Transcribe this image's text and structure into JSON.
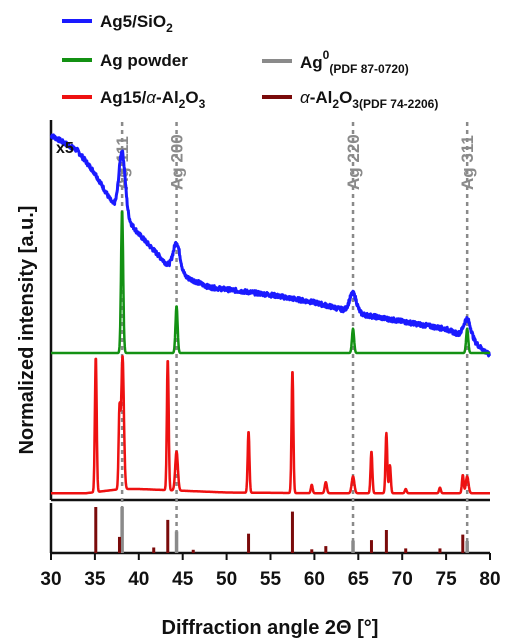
{
  "chart_data": {
    "type": "line",
    "xlabel": "Diffraction angle 2Θ [°]",
    "ylabel": "Normalized intensity [a.u.]",
    "xlim": [
      30,
      80
    ],
    "xticks": [
      "30",
      "35",
      "40",
      "45",
      "50",
      "55",
      "60",
      "65",
      "70",
      "75",
      "80"
    ],
    "scale_label": "x5",
    "legend": {
      "ag5": {
        "pre": "Ag5/SiO",
        "sub": "2",
        "post": "",
        "color": "#1a1aff"
      },
      "agpowder": {
        "pre": "Ag powder",
        "sub": "",
        "post": "",
        "color": "#139113"
      },
      "ag15": {
        "pre": "Ag15/",
        "alpha": "α",
        "mid": "-Al",
        "sub1": "2",
        "o": "O",
        "sub2": "3",
        "color": "#ee1111"
      },
      "ag0": {
        "pre": "Ag",
        "sup": "0",
        "sub": "(PDF 87-0720)",
        "color": "#8a8a8a"
      },
      "al2o3": {
        "alpha": "α",
        "mid": "-Al",
        "sub1": "2",
        "o": "O",
        "sub2": "3(PDF 74-2206)",
        "color": "#7a0a0a"
      }
    },
    "reflections": [
      {
        "label": "Ag 111",
        "x": 38.1
      },
      {
        "label": "Ag 200",
        "x": 44.3
      },
      {
        "label": "Ag 220",
        "x": 64.4
      },
      {
        "label": "Ag 311",
        "x": 77.4
      }
    ],
    "series": [
      {
        "name": "Ag5/SiO2",
        "baseline": [
          [
            30,
            0.96
          ],
          [
            33,
            0.92
          ],
          [
            35,
            0.86
          ],
          [
            37,
            0.78
          ],
          [
            38,
            0.76
          ],
          [
            40,
            0.7
          ],
          [
            44,
            0.6
          ],
          [
            48,
            0.56
          ],
          [
            55,
            0.54
          ],
          [
            60,
            0.52
          ],
          [
            65,
            0.49
          ],
          [
            70,
            0.47
          ],
          [
            75,
            0.45
          ],
          [
            78,
            0.42
          ],
          [
            80,
            0.38
          ]
        ],
        "peaks": [
          {
            "x": 38.1,
            "h": 0.16,
            "w": 0.35
          },
          {
            "x": 44.3,
            "h": 0.08,
            "w": 0.4
          },
          {
            "x": 64.4,
            "h": 0.05,
            "w": 0.4
          },
          {
            "x": 77.4,
            "h": 0.05,
            "w": 0.4
          }
        ]
      },
      {
        "name": "Ag powder",
        "baseline": [
          [
            30,
            0
          ],
          [
            80,
            0
          ]
        ],
        "peaks": [
          {
            "x": 38.1,
            "h": 1.0,
            "w": 0.12
          },
          {
            "x": 44.3,
            "h": 0.33,
            "w": 0.12
          },
          {
            "x": 64.4,
            "h": 0.17,
            "w": 0.12
          },
          {
            "x": 77.4,
            "h": 0.17,
            "w": 0.12
          }
        ]
      },
      {
        "name": "Ag15/α-Al2O3",
        "baseline": [
          [
            30,
            0.02
          ],
          [
            34,
            0.02
          ],
          [
            36,
            0.035
          ],
          [
            38,
            0.05
          ],
          [
            40,
            0.05
          ],
          [
            44,
            0.04
          ],
          [
            50,
            0.025
          ],
          [
            60,
            0.02
          ],
          [
            70,
            0.02
          ],
          [
            80,
            0.02
          ]
        ],
        "peaks": [
          {
            "x": 35.1,
            "h": 0.97,
            "w": 0.1
          },
          {
            "x": 37.8,
            "h": 0.55,
            "w": 0.1
          },
          {
            "x": 38.15,
            "h": 0.95,
            "w": 0.15
          },
          {
            "x": 43.3,
            "h": 0.94,
            "w": 0.1
          },
          {
            "x": 44.3,
            "h": 0.28,
            "w": 0.15
          },
          {
            "x": 52.5,
            "h": 0.44,
            "w": 0.1
          },
          {
            "x": 57.5,
            "h": 0.88,
            "w": 0.1
          },
          {
            "x": 59.7,
            "h": 0.06,
            "w": 0.1
          },
          {
            "x": 61.3,
            "h": 0.08,
            "w": 0.12
          },
          {
            "x": 64.4,
            "h": 0.12,
            "w": 0.15
          },
          {
            "x": 66.5,
            "h": 0.3,
            "w": 0.1
          },
          {
            "x": 68.2,
            "h": 0.43,
            "w": 0.1
          },
          {
            "x": 68.6,
            "h": 0.2,
            "w": 0.1
          },
          {
            "x": 70.4,
            "h": 0.03,
            "w": 0.1
          },
          {
            "x": 74.3,
            "h": 0.04,
            "w": 0.1
          },
          {
            "x": 76.9,
            "h": 0.13,
            "w": 0.1
          },
          {
            "x": 77.4,
            "h": 0.12,
            "w": 0.15
          }
        ]
      }
    ],
    "reference_sticks": [
      {
        "series": "Ag0",
        "sticks": [
          [
            38.1,
            1.0
          ],
          [
            44.3,
            0.47
          ],
          [
            64.4,
            0.27
          ],
          [
            77.4,
            0.26
          ]
        ]
      },
      {
        "series": "α-Al2O3",
        "sticks": [
          [
            35.1,
            1.0
          ],
          [
            37.8,
            0.35
          ],
          [
            41.7,
            0.12
          ],
          [
            43.3,
            0.72
          ],
          [
            46.2,
            0.07
          ],
          [
            52.5,
            0.42
          ],
          [
            57.5,
            0.9
          ],
          [
            59.7,
            0.08
          ],
          [
            61.3,
            0.15
          ],
          [
            66.5,
            0.28
          ],
          [
            68.2,
            0.5
          ],
          [
            70.4,
            0.1
          ],
          [
            74.3,
            0.1
          ],
          [
            76.9,
            0.4
          ]
        ]
      }
    ]
  }
}
